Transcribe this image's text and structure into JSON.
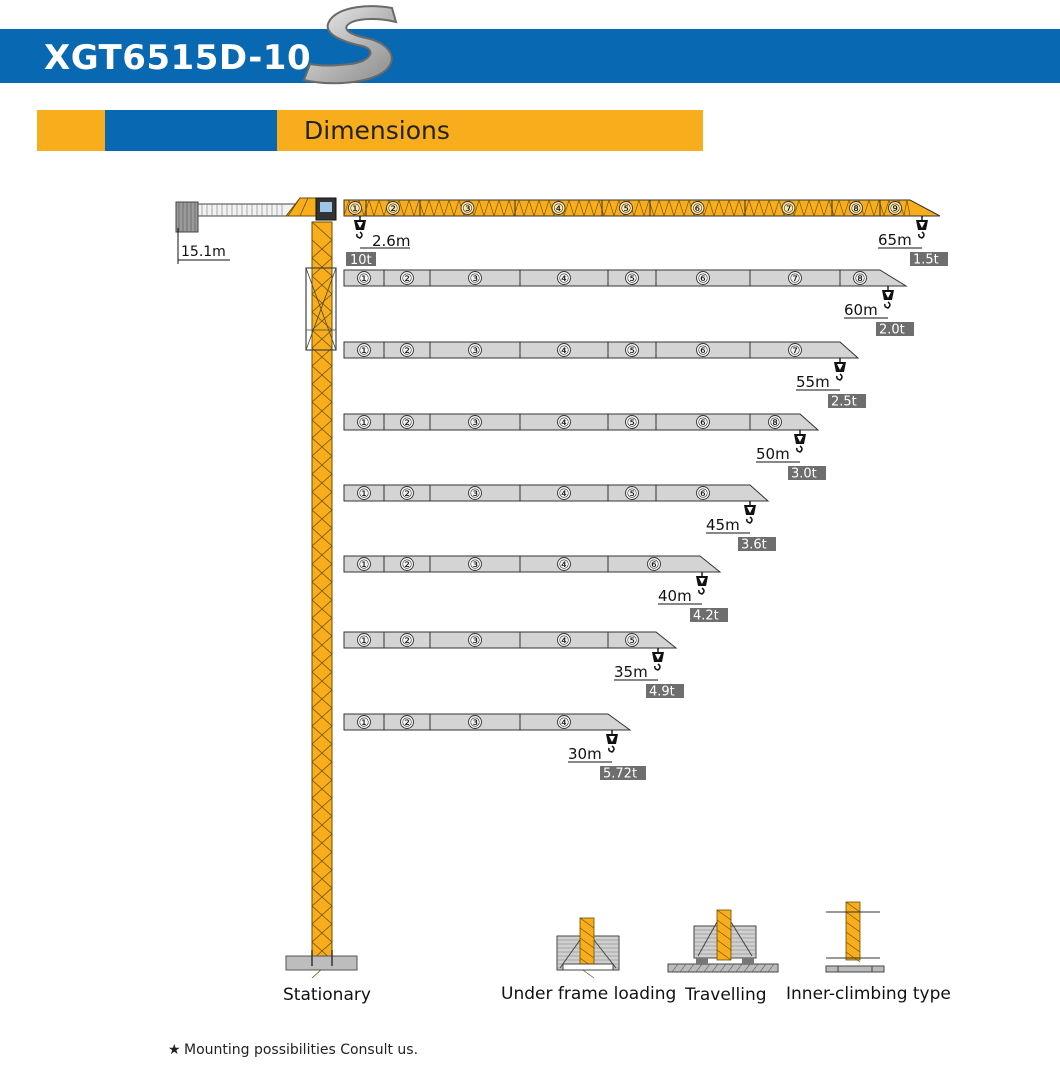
{
  "header": {
    "model": "XGT6515D-10"
  },
  "section": {
    "title": "Dimensions"
  },
  "counter_jib_length": "15.1m",
  "first_hook": {
    "radius": "2.6m",
    "load": "10t"
  },
  "jibs": [
    {
      "length": "65m",
      "load": "1.5t",
      "sections": [
        "①",
        "②",
        "③",
        "④",
        "⑤",
        "⑥",
        "⑦",
        "⑧",
        "⑨"
      ]
    },
    {
      "length": "60m",
      "load": "2.0t",
      "sections": [
        "①",
        "②",
        "③",
        "④",
        "⑤",
        "⑥",
        "⑦",
        "⑧"
      ]
    },
    {
      "length": "55m",
      "load": "2.5t",
      "sections": [
        "①",
        "②",
        "③",
        "④",
        "⑤",
        "⑥",
        "⑦"
      ]
    },
    {
      "length": "50m",
      "load": "3.0t",
      "sections": [
        "①",
        "②",
        "③",
        "④",
        "⑤",
        "⑥",
        "⑧"
      ]
    },
    {
      "length": "45m",
      "load": "3.6t",
      "sections": [
        "①",
        "②",
        "③",
        "④",
        "⑤",
        "⑥"
      ]
    },
    {
      "length": "40m",
      "load": "4.2t",
      "sections": [
        "①",
        "②",
        "③",
        "④",
        "⑥"
      ]
    },
    {
      "length": "35m",
      "load": "4.9t",
      "sections": [
        "①",
        "②",
        "③",
        "④",
        "⑤"
      ]
    },
    {
      "length": "30m",
      "load": "5.72t",
      "sections": [
        "①",
        "②",
        "③",
        "④"
      ]
    }
  ],
  "mounting": {
    "stationary": "Stationary",
    "under_frame": "Under frame loading",
    "travelling": "Travelling",
    "inner_climbing": "Inner-climbing type"
  },
  "footnote": {
    "star": "★",
    "text": "Mounting possibilities Consult us."
  },
  "colors": {
    "blue": "#0868b2",
    "yellow": "#f8ad1c",
    "jib_gray": "#d4d4d4",
    "label_gray": "#6e6e6e"
  }
}
